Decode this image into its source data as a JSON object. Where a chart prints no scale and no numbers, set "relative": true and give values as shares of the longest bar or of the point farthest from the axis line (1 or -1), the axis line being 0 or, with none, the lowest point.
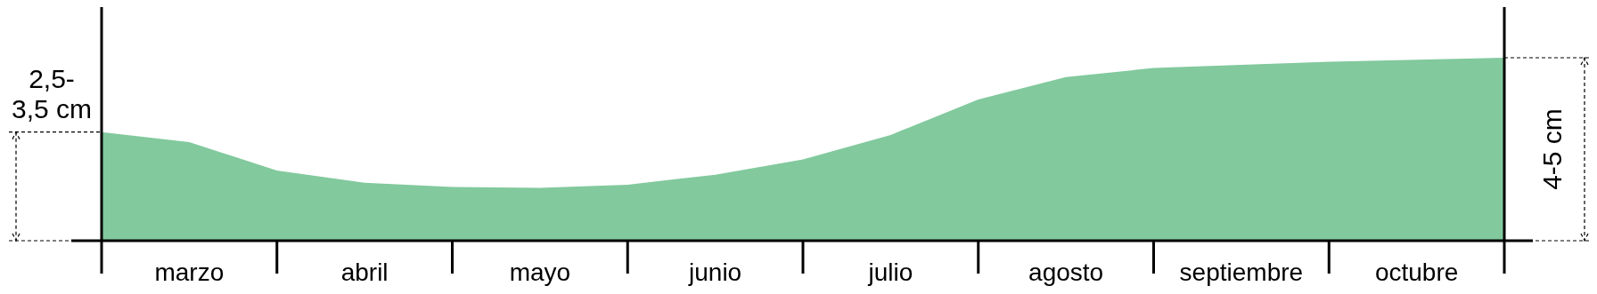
{
  "chart_data": {
    "type": "area",
    "relative": true,
    "categories": [
      null,
      "marzo",
      null,
      "abril",
      null,
      "mayo",
      null,
      "junio",
      null,
      "julio",
      null,
      "agosto",
      null,
      "septiembre",
      null,
      "octubre",
      null
    ],
    "series": [
      {
        "color": "#82c99d",
        "values": [
          0.594,
          0.539,
          0.383,
          0.317,
          0.294,
          0.289,
          0.306,
          0.361,
          0.444,
          0.578,
          0.772,
          0.894,
          0.944,
          0.961,
          0.978,
          0.989,
          1
        ]
      }
    ],
    "annotations": [
      "2,5-3,5 cm",
      "4-5 cm"
    ]
  }
}
